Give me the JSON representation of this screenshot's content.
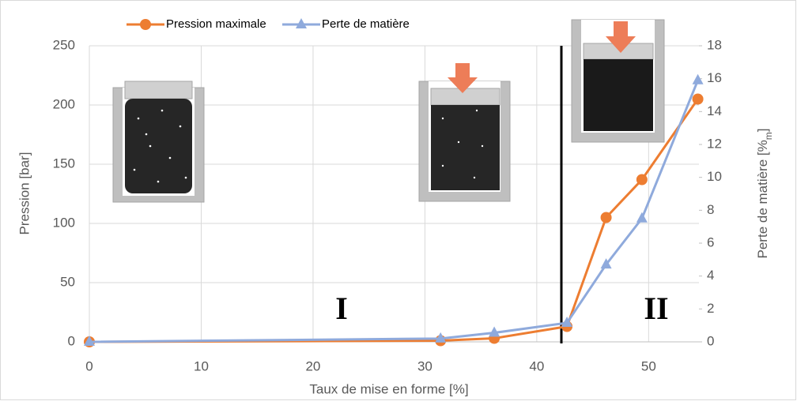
{
  "chart_data": {
    "type": "line",
    "x_label": "Taux de mise en forme [%]",
    "y_label": "Pression [bar]",
    "y2_label": {
      "text": "Perte de matière [%",
      "sub": "m",
      "end": "]"
    },
    "xlim": [
      0,
      54.5
    ],
    "xticks": [
      0,
      10,
      20,
      30,
      40,
      50
    ],
    "ylim": [
      0,
      250
    ],
    "yticks": [
      0,
      50,
      100,
      150,
      200,
      250
    ],
    "y2lim": [
      0,
      18
    ],
    "y2ticks": [
      0,
      2,
      4,
      6,
      8,
      10,
      12,
      14,
      16,
      18
    ],
    "grid": true,
    "divider_x": 42.2,
    "annotations": [
      "I",
      "II"
    ],
    "series": [
      {
        "name": "Pression maximale",
        "color": "#ed7d31",
        "marker": "circle",
        "x": [
          0,
          31.4,
          36.2,
          42.7,
          46.2,
          49.4,
          54.4
        ],
        "values": [
          0,
          1,
          3,
          13,
          105,
          137,
          205
        ]
      },
      {
        "name": "Perte de matière",
        "color": "#8faadc",
        "marker": "triangle",
        "axis": "y2",
        "x": [
          0,
          31.4,
          36.2,
          42.7,
          46.2,
          49.4,
          54.4
        ],
        "values": [
          0,
          0.2,
          0.55,
          1.15,
          4.7,
          7.5,
          15.9
        ]
      }
    ]
  }
}
